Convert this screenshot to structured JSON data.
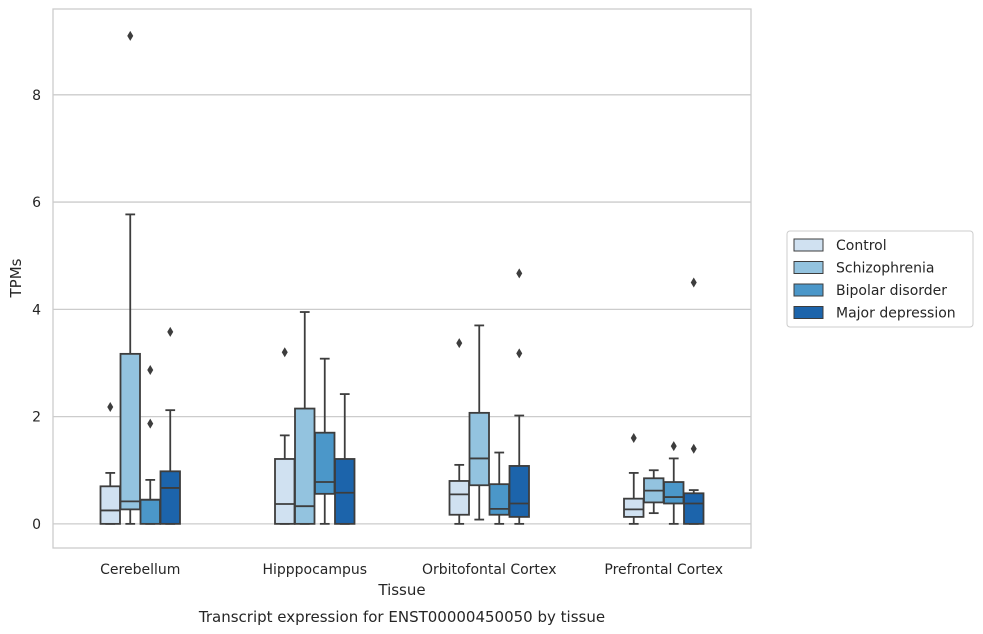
{
  "caption": "Transcript expression for ENST00000450050 by tissue",
  "colors": {
    "Control": "#d0e1f1",
    "Schizophrenia": "#93c3df",
    "Bipolar disorder": "#4b97c9",
    "Major depression": "#1c64ab",
    "grid": "#cccccc",
    "box_edge": "#3d3d3d"
  },
  "chart_data": {
    "type": "box",
    "xlabel": "Tissue",
    "ylabel": "TPMs",
    "ylim": [
      -0.45,
      9.6
    ],
    "yticks": [
      0,
      2,
      4,
      6,
      8
    ],
    "grid": "horizontal",
    "legend_position": "right",
    "categories": [
      "Cerebellum",
      "Hipppocampus",
      "Orbitofontal Cortex",
      "Prefrontal Cortex"
    ],
    "series": [
      {
        "name": "Control",
        "boxes": [
          {
            "whislo": 0,
            "q1": 0,
            "med": 0.25,
            "q3": 0.7,
            "whishi": 0.95,
            "fliers": [
              2.18
            ]
          },
          {
            "whislo": 0,
            "q1": 0,
            "med": 0.37,
            "q3": 1.21,
            "whishi": 1.65,
            "fliers": [
              3.2
            ]
          },
          {
            "whislo": 0,
            "q1": 0.17,
            "med": 0.55,
            "q3": 0.8,
            "whishi": 1.1,
            "fliers": [
              3.37
            ]
          },
          {
            "whislo": 0,
            "q1": 0.13,
            "med": 0.27,
            "q3": 0.47,
            "whishi": 0.95,
            "fliers": [
              1.6
            ]
          }
        ]
      },
      {
        "name": "Schizophrenia",
        "boxes": [
          {
            "whislo": 0,
            "q1": 0.27,
            "med": 0.42,
            "q3": 3.17,
            "whishi": 5.77,
            "fliers": [
              9.1
            ]
          },
          {
            "whislo": 0,
            "q1": 0,
            "med": 0.33,
            "q3": 2.15,
            "whishi": 3.95,
            "fliers": []
          },
          {
            "whislo": 0.08,
            "q1": 0.72,
            "med": 1.22,
            "q3": 2.07,
            "whishi": 3.7,
            "fliers": []
          },
          {
            "whislo": 0.2,
            "q1": 0.4,
            "med": 0.62,
            "q3": 0.85,
            "whishi": 1.0,
            "fliers": []
          }
        ]
      },
      {
        "name": "Bipolar disorder",
        "boxes": [
          {
            "whislo": 0,
            "q1": 0,
            "med": 0.45,
            "q3": 0.45,
            "whishi": 0.82,
            "fliers": [
              1.87,
              2.87
            ]
          },
          {
            "whislo": 0,
            "q1": 0.56,
            "med": 0.78,
            "q3": 1.7,
            "whishi": 3.08,
            "fliers": []
          },
          {
            "whislo": 0,
            "q1": 0.17,
            "med": 0.28,
            "q3": 0.74,
            "whishi": 1.33,
            "fliers": []
          },
          {
            "whislo": 0,
            "q1": 0.38,
            "med": 0.5,
            "q3": 0.78,
            "whishi": 1.22,
            "fliers": [
              1.45
            ]
          }
        ]
      },
      {
        "name": "Major depression",
        "boxes": [
          {
            "whislo": 0,
            "q1": 0,
            "med": 0.67,
            "q3": 0.98,
            "whishi": 2.12,
            "fliers": [
              3.58
            ]
          },
          {
            "whislo": 0,
            "q1": 0,
            "med": 0.58,
            "q3": 1.21,
            "whishi": 2.42,
            "fliers": []
          },
          {
            "whislo": 0,
            "q1": 0.13,
            "med": 0.38,
            "q3": 1.08,
            "whishi": 2.02,
            "fliers": [
              3.18,
              4.67
            ]
          },
          {
            "whislo": 0,
            "q1": 0,
            "med": 0.38,
            "q3": 0.57,
            "whishi": 0.63,
            "fliers": [
              1.4,
              4.5
            ]
          }
        ]
      }
    ]
  }
}
